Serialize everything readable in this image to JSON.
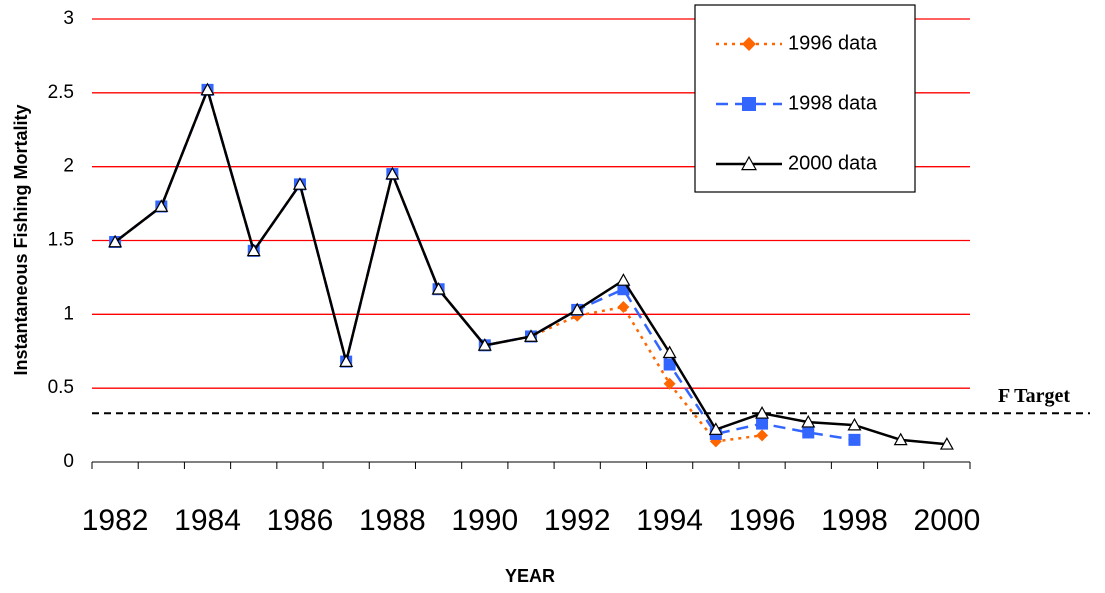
{
  "chart_data": {
    "type": "line",
    "x_label": "YEAR",
    "y_label": "Instantaneous Fishing Mortality",
    "categories": [
      "1982",
      null,
      "1984",
      null,
      "1986",
      null,
      "1988",
      null,
      "1990",
      null,
      "1992",
      null,
      "1994",
      null,
      "1996",
      null,
      "1998",
      null,
      "2000"
    ],
    "series": [
      {
        "name": "1996 data",
        "color": "#ff6600",
        "dash": "dotted",
        "marker": "diamond",
        "values": [
          1.49,
          1.73,
          2.52,
          1.43,
          1.88,
          0.68,
          1.95,
          1.17,
          0.79,
          0.85,
          0.99,
          1.05,
          0.53,
          0.14,
          0.18,
          null,
          null,
          null,
          null
        ]
      },
      {
        "name": "1998 data",
        "color": "#3366ff",
        "dash": "dashed",
        "marker": "square",
        "values": [
          1.49,
          1.73,
          2.52,
          1.43,
          1.88,
          0.68,
          1.95,
          1.17,
          0.79,
          0.85,
          1.03,
          1.17,
          0.66,
          0.19,
          0.26,
          0.2,
          0.15,
          null,
          null
        ]
      },
      {
        "name": "2000 data",
        "color": "#000000",
        "dash": "solid",
        "marker": "triangle",
        "values": [
          1.49,
          1.73,
          2.52,
          1.43,
          1.88,
          0.68,
          1.95,
          1.17,
          0.79,
          0.85,
          1.03,
          1.23,
          0.74,
          0.22,
          0.33,
          0.27,
          0.25,
          0.15,
          0.12
        ]
      }
    ],
    "target": {
      "value": 0.33,
      "label": "F Target"
    },
    "ylim": [
      0,
      3
    ],
    "yticks": [
      0,
      0.5,
      1,
      1.5,
      2,
      2.5,
      3
    ],
    "grid": true,
    "grid_color": "#ff0000",
    "legend": "upper right"
  }
}
